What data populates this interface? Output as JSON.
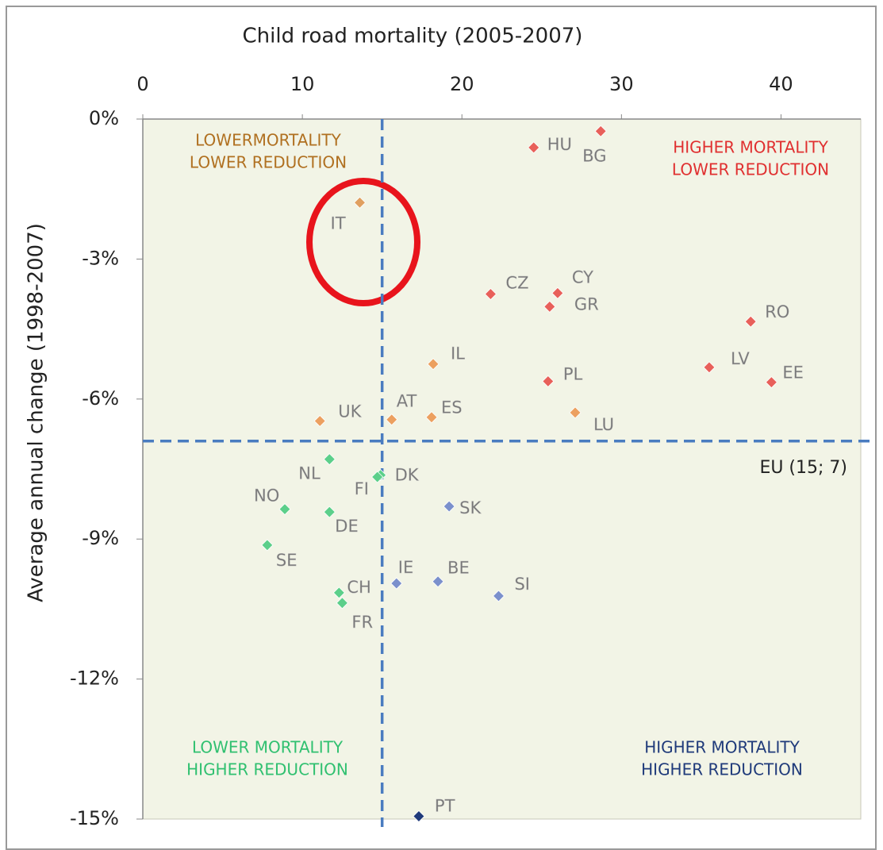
{
  "chart_data": {
    "type": "scatter",
    "title": "Child road mortality (2005-2007)",
    "y_label": "Average annual change (1998-2007)",
    "xlim": [
      0,
      45
    ],
    "xticks": [
      0,
      10,
      20,
      30,
      40
    ],
    "ylim": [
      -15,
      0
    ],
    "yticks": [
      {
        "value": 0,
        "label": "0%"
      },
      {
        "value": -3,
        "label": "-3%"
      },
      {
        "value": -6,
        "label": "-6%"
      },
      {
        "value": -9,
        "label": "-9%"
      },
      {
        "value": -12,
        "label": "-12%"
      },
      {
        "value": -15,
        "label": "-15%"
      }
    ],
    "labels": [
      "HU",
      "BG",
      "IT",
      "CZ",
      "CY",
      "GR",
      "RO",
      "IL",
      "LV",
      "PL",
      "EE",
      "UK",
      "AT",
      "ES",
      "LU",
      "NL",
      "DK",
      "FI",
      "NO",
      "DE",
      "SK",
      "SE",
      "IE",
      "BE",
      "SI",
      "CH",
      "FR",
      "PT"
    ],
    "x": [
      24.5,
      28.7,
      13.6,
      21.8,
      26.0,
      25.5,
      38.1,
      18.2,
      35.5,
      25.4,
      39.4,
      11.1,
      15.6,
      18.1,
      27.1,
      11.7,
      14.9,
      14.7,
      8.9,
      11.7,
      19.2,
      7.8,
      15.9,
      18.5,
      22.3,
      12.3,
      12.5,
      17.3
    ],
    "y": [
      -0.61,
      -0.26,
      -1.79,
      -3.75,
      -3.73,
      -4.02,
      -4.34,
      -5.25,
      -5.32,
      -5.62,
      -5.64,
      -6.47,
      -6.44,
      -6.39,
      -6.29,
      -7.29,
      -7.63,
      -7.67,
      -8.36,
      -8.42,
      -8.3,
      -9.13,
      -9.95,
      -9.91,
      -10.22,
      -10.15,
      -10.37,
      -14.94
    ],
    "colors": [
      "#e8605a",
      "#e8605a",
      "#e0a060",
      "#e8605a",
      "#e8605a",
      "#e8605a",
      "#e8605a",
      "#eca060",
      "#e8605a",
      "#e8605a",
      "#e8605a",
      "#eca060",
      "#eca060",
      "#eca060",
      "#eca060",
      "#5ccf8a",
      "#5ccf8a",
      "#5ccf8a",
      "#5ccf8a",
      "#5ccf8a",
      "#7b90cc",
      "#5ccf8a",
      "#7b90cc",
      "#7b90cc",
      "#7b90cc",
      "#5ccf8a",
      "#5ccf8a",
      "#1f3a7a"
    ],
    "reference": {
      "x": 15,
      "y": -6.9,
      "label": "EU (15; 7)",
      "color": "#4a7cc0"
    },
    "annotations": [
      {
        "lines": [
          "LOWERMORTALITY",
          "LOWER REDUCTION"
        ],
        "color": "#b07020"
      },
      {
        "lines": [
          "HIGHER MORTALITY",
          "LOWER REDUCTION"
        ],
        "color": "#e03030"
      },
      {
        "lines": [
          "LOWER MORTALITY",
          "HIGHER REDUCTION"
        ],
        "color": "#30c070"
      },
      {
        "lines": [
          "HIGHER MORTALITY",
          "HIGHER REDUCTION"
        ],
        "color": "#1f3a7a"
      }
    ]
  }
}
